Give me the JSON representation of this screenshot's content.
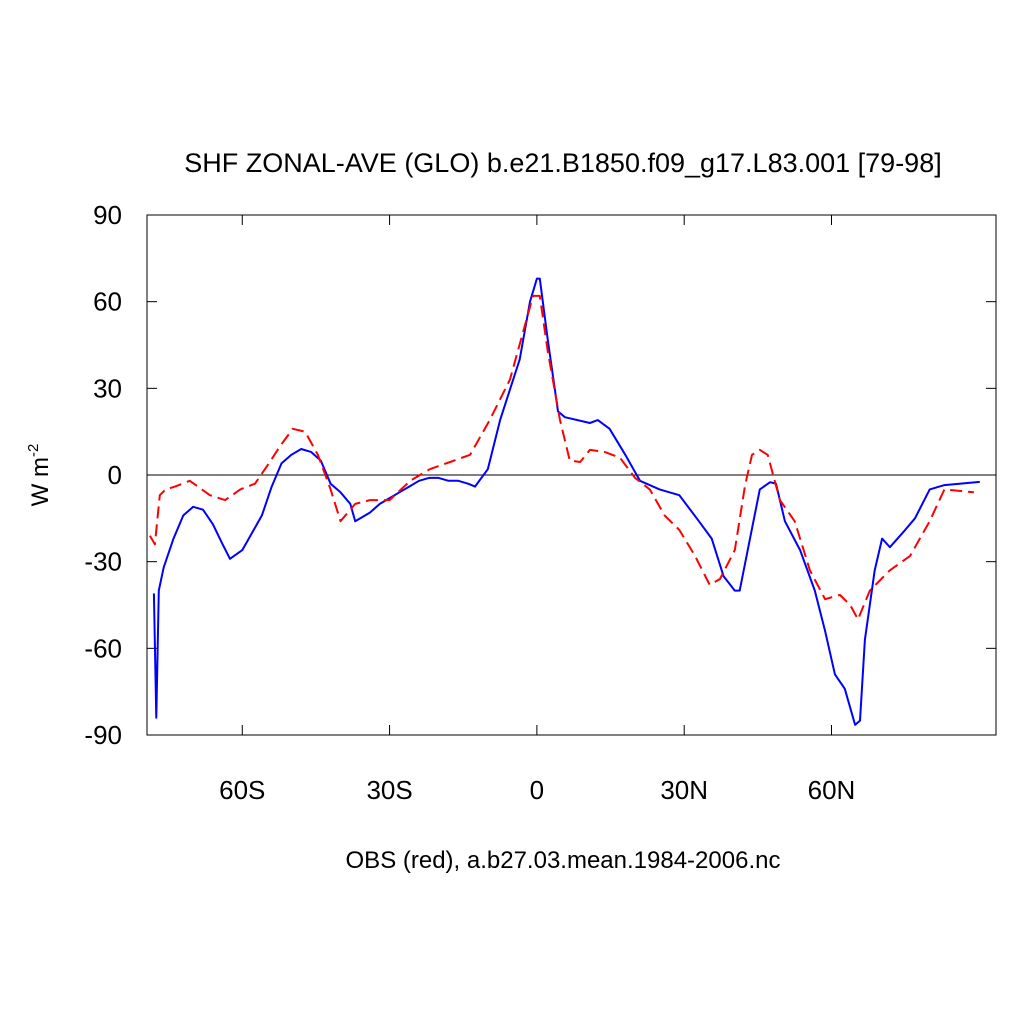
{
  "chart_data": {
    "type": "line",
    "title": "SHF ZONAL-AVE (GLO) b.e21.B1850.f09_g17.L83.001 [79-98]",
    "xlabel": "OBS (red), a.b27.03.mean.1984-2006.nc",
    "ylabel": {
      "text": "W m",
      "superscript": "-2"
    },
    "xlim": [
      -79.4,
      93.5
    ],
    "ylim": [
      -90,
      90
    ],
    "xticks": [
      {
        "value": -60,
        "label": "60S"
      },
      {
        "value": -30,
        "label": "30S"
      },
      0,
      {
        "value": 30,
        "label": "30N"
      },
      {
        "value": 60,
        "label": "60N"
      }
    ],
    "yticks": [
      -90,
      -60,
      -30,
      0,
      30,
      60,
      90
    ],
    "yref": 0,
    "series": [
      {
        "color": "#0000ff",
        "dash": false,
        "x": [
          -78,
          -77.5,
          -77,
          -76,
          -74,
          -72,
          -70,
          -68,
          -66,
          -64,
          -62.5,
          -60,
          -58,
          -56,
          -54,
          -52,
          -50,
          -48,
          -46,
          -44,
          -42,
          -40,
          -38,
          -37,
          -34,
          -32,
          -30,
          -28,
          -26,
          -24,
          -22,
          -20,
          -18,
          -16,
          -14,
          -12.6,
          -10,
          -7.5,
          -3.5,
          -1.4,
          0,
          0.6,
          2.2,
          4.3,
          5.7,
          10.8,
          12.4,
          14.8,
          18,
          21,
          25,
          29,
          33,
          35.6,
          38,
          40.3,
          41.3,
          43.4,
          45.4,
          47.5,
          48.7,
          50.5,
          53.6,
          56.6,
          58.7,
          60.7,
          62.7,
          64.8,
          65.8,
          66.8,
          68.8,
          70.3,
          71.9,
          75,
          77,
          80,
          83,
          90.2
        ],
        "values": [
          -41,
          -84,
          -40,
          -32,
          -22,
          -14,
          -11,
          -12,
          -17,
          -24,
          -29,
          -26,
          -20,
          -14,
          -4,
          4,
          7,
          9,
          8,
          5,
          -3,
          -6,
          -10,
          -16,
          -13,
          -10,
          -8,
          -6,
          -4,
          -2,
          -1,
          -1,
          -2,
          -2,
          -3,
          -4,
          2,
          19,
          40,
          60,
          68,
          68,
          47,
          22,
          20,
          18,
          19,
          16,
          7,
          -2,
          -5,
          -7,
          -16,
          -22,
          -35,
          -40,
          -40,
          -22,
          -5,
          -2.5,
          -3,
          -16,
          -26,
          -40,
          -54,
          -69,
          -74,
          -86.5,
          -85,
          -57,
          -33,
          -22,
          -25,
          -19,
          -15,
          -5,
          -3.5,
          -2.4
        ]
      },
      {
        "color": "#ff0000",
        "dash": true,
        "x": [
          -78.8,
          -77.8,
          -76.8,
          -75.6,
          -73.7,
          -70.7,
          -66.6,
          -63.5,
          -60.4,
          -57.4,
          -54.4,
          -52.3,
          -49.7,
          -47.2,
          -44.6,
          -42,
          -40,
          -37,
          -34,
          -30,
          -25.8,
          -21.8,
          -17.7,
          -13.6,
          -9.6,
          -5.5,
          -2.4,
          -0.8,
          0.6,
          2.2,
          4.7,
          6.7,
          8.8,
          10.8,
          13.8,
          16.9,
          20,
          23,
          26,
          29,
          32.2,
          35.2,
          37.3,
          40.3,
          42.4,
          43.8,
          45.4,
          47,
          49.5,
          52.5,
          55.6,
          58.7,
          61.7,
          63.8,
          65.4,
          67.8,
          71.9,
          76,
          80,
          83,
          89
        ],
        "values": [
          -21,
          -24,
          -7,
          -5,
          -4,
          -2,
          -7,
          -8.7,
          -5,
          -3,
          4.5,
          10,
          16,
          15,
          7,
          -5,
          -16,
          -10,
          -8.7,
          -8.7,
          -2,
          2,
          4.5,
          7,
          19,
          33,
          52,
          62,
          62,
          43,
          19,
          5,
          4.5,
          8.7,
          8,
          6,
          -1,
          -5,
          -14,
          -19,
          -28,
          -38,
          -36,
          -26,
          -3.5,
          7,
          8.7,
          7,
          -8.7,
          -16,
          -33,
          -43,
          -41.5,
          -45,
          -50,
          -40,
          -33,
          -28,
          -16,
          -5,
          -6
        ]
      }
    ]
  }
}
